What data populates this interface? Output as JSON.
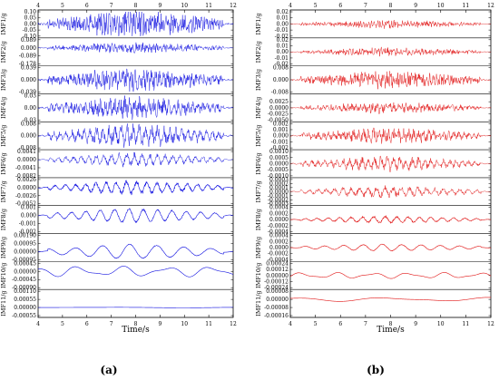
{
  "chart_data": [
    {
      "type": "line",
      "panel_label": "(a)",
      "color": "#1010e0",
      "xlabel": "Time/s",
      "xlim": [
        4,
        12
      ],
      "xticks": [
        "4",
        "5",
        "6",
        "7",
        "8",
        "9",
        "10",
        "11",
        "12"
      ],
      "series": [
        {
          "name": "IMF1/g",
          "ylim": [
            -0.1,
            0.1
          ],
          "ticks": [
            "0.10",
            "0.05",
            "0.00",
            "-0.05",
            "-0.10"
          ],
          "amplitude": 0.095,
          "cycles_per_s": 9.0,
          "noise": 1.0
        },
        {
          "name": "IMF2/g",
          "ylim": [
            -0.178,
            0.089
          ],
          "ticks": [
            "0.089",
            "0.000",
            "-0.089",
            "-0.178"
          ],
          "amplitude": 0.05,
          "cycles_per_s": 7.0,
          "noise": 1.0
        },
        {
          "name": "IMF3/g",
          "ylim": [
            -0.039,
            0.039
          ],
          "ticks": [
            "0.039",
            "0.000",
            "-0.039"
          ],
          "amplitude": 0.033,
          "cycles_per_s": 6.0,
          "noise": 0.9
        },
        {
          "name": "IMF4/g",
          "ylim": [
            -0.03,
            0.03
          ],
          "ticks": [
            "0.03",
            "0.00",
            "-0.03"
          ],
          "amplitude": 0.025,
          "cycles_per_s": 5.0,
          "noise": 0.8
        },
        {
          "name": "IMF5/g",
          "ylim": [
            -0.008,
            0.008
          ],
          "ticks": [
            "0.008",
            "0.000",
            "-0.008"
          ],
          "amplitude": 0.0075,
          "cycles_per_s": 4.0,
          "noise": 0.6
        },
        {
          "name": "IMF6/g",
          "ylim": [
            -0.0082,
            0.0041
          ],
          "ticks": [
            "0.0041",
            "0.0000",
            "-0.0041",
            "-0.0082"
          ],
          "amplitude": 0.0035,
          "cycles_per_s": 3.2,
          "noise": 0.45
        },
        {
          "name": "IMF7/g",
          "ylim": [
            -0.0052,
            0.0026
          ],
          "ticks": [
            "0.0026",
            "0.0000",
            "-0.0026",
            "-0.0052"
          ],
          "amplitude": 0.0022,
          "cycles_per_s": 2.4,
          "noise": 0.3
        },
        {
          "name": "IMF8/g",
          "ylim": [
            -0.002,
            0.001
          ],
          "ticks": [
            "0.001",
            "0.000",
            "-0.001",
            "-0.002"
          ],
          "amplitude": 0.0009,
          "cycles_per_s": 1.7,
          "noise": 0.12
        },
        {
          "name": "IMF9/g",
          "ylim": [
            -0.00095,
            0.0019
          ],
          "ticks": [
            "0.00190",
            "0.00095",
            "0.00000",
            "-0.00095"
          ],
          "amplitude": 0.0009,
          "cycles_per_s": 0.9,
          "noise": 0.05
        },
        {
          "name": "IMF10/g",
          "ylim": [
            -0.0009,
            0.00045
          ],
          "ticks": [
            "0.00045",
            "0.00000",
            "-0.00045",
            "-0.00090"
          ],
          "amplitude": 0.0003,
          "cycles_per_s": 0.55,
          "noise": 0.0
        },
        {
          "name": "IMF11/g",
          "ylim": [
            -0.00055,
            0.0011
          ],
          "ticks": [
            "0.00110",
            "0.00055",
            "0.00000",
            "-0.00055"
          ],
          "amplitude": 2e-05,
          "cycles_per_s": 0.15,
          "noise": 0.0
        }
      ]
    },
    {
      "type": "line",
      "panel_label": "(b)",
      "color": "#e01010",
      "xlabel": "Time/s",
      "xlim": [
        4,
        12
      ],
      "xticks": [
        "4",
        "5",
        "6",
        "7",
        "8",
        "9",
        "10",
        "11",
        "12"
      ],
      "series": [
        {
          "name": "IMF1/g",
          "ylim": [
            -0.02,
            0.02
          ],
          "ticks": [
            "0.02",
            "0.01",
            "0.00",
            "-0.01",
            "-0.02"
          ],
          "amplitude": 0.006,
          "cycles_per_s": 9.0,
          "noise": 1.0
        },
        {
          "name": "IMF2/g",
          "ylim": [
            -0.02,
            0.02
          ],
          "ticks": [
            "0.02",
            "0.01",
            "0.00",
            "-0.01",
            "-0.02"
          ],
          "amplitude": 0.006,
          "cycles_per_s": 8.0,
          "noise": 1.0
        },
        {
          "name": "IMF3/g",
          "ylim": [
            -0.008,
            0.008
          ],
          "ticks": [
            "0.008",
            "0.000",
            "-0.008"
          ],
          "amplitude": 0.005,
          "cycles_per_s": 7.0,
          "noise": 1.0
        },
        {
          "name": "IMF4/g",
          "ylim": [
            -0.005,
            0.005
          ],
          "ticks": [
            "0.0025",
            "0.0000",
            "-0.0025",
            "-0.0050"
          ],
          "amplitude": 0.002,
          "cycles_per_s": 6.0,
          "noise": 0.9
        },
        {
          "name": "IMF5/g",
          "ylim": [
            -0.002,
            0.002
          ],
          "ticks": [
            "0.002",
            "0.001",
            "0.000",
            "-0.001",
            "-0.002"
          ],
          "amplitude": 0.0012,
          "cycles_per_s": 5.0,
          "noise": 0.8
        },
        {
          "name": "IMF6/g",
          "ylim": [
            -0.001,
            0.001
          ],
          "ticks": [
            "0.0010",
            "0.0005",
            "0.0000",
            "-0.0005",
            "-0.0010"
          ],
          "amplitude": 0.0006,
          "cycles_per_s": 4.0,
          "noise": 0.6
        },
        {
          "name": "IMF7/g",
          "ylim": [
            -0.0003,
            0.0003
          ],
          "ticks": [
            "0.0003",
            "0.0002",
            "0.0001",
            "0.0000",
            "-0.0001",
            "-0.0002",
            "-0.0003"
          ],
          "amplitude": 0.00015,
          "cycles_per_s": 3.0,
          "noise": 0.5
        },
        {
          "name": "IMF8/g",
          "ylim": [
            -0.0004,
            0.0004
          ],
          "ticks": [
            "0.0004",
            "0.0002",
            "0.0000",
            "-0.0002",
            "-0.0004"
          ],
          "amplitude": 0.00012,
          "cycles_per_s": 2.2,
          "noise": 0.25
        },
        {
          "name": "IMF9/g",
          "ylim": [
            -0.0004,
            0.0004
          ],
          "ticks": [
            "0.0004",
            "0.0002",
            "0.0000",
            "-0.0002",
            "-0.0004"
          ],
          "amplitude": 0.00012,
          "cycles_per_s": 1.3,
          "noise": 0.1
        },
        {
          "name": "IMF10/g",
          "ylim": [
            -0.00024,
            0.00024
          ],
          "ticks": [
            "0.00024",
            "0.00012",
            "0.00000",
            "-0.00012",
            "-0.00024"
          ],
          "amplitude": 6e-05,
          "cycles_per_s": 0.7,
          "noise": 0.0
        },
        {
          "name": "IMF11/g",
          "ylim": [
            -0.00016,
            8e-05
          ],
          "ticks": [
            "0.00008",
            "0.00000",
            "-0.00008",
            "-0.00016"
          ],
          "amplitude": 2e-05,
          "cycles_per_s": 0.25,
          "noise": 0.0
        }
      ]
    }
  ]
}
